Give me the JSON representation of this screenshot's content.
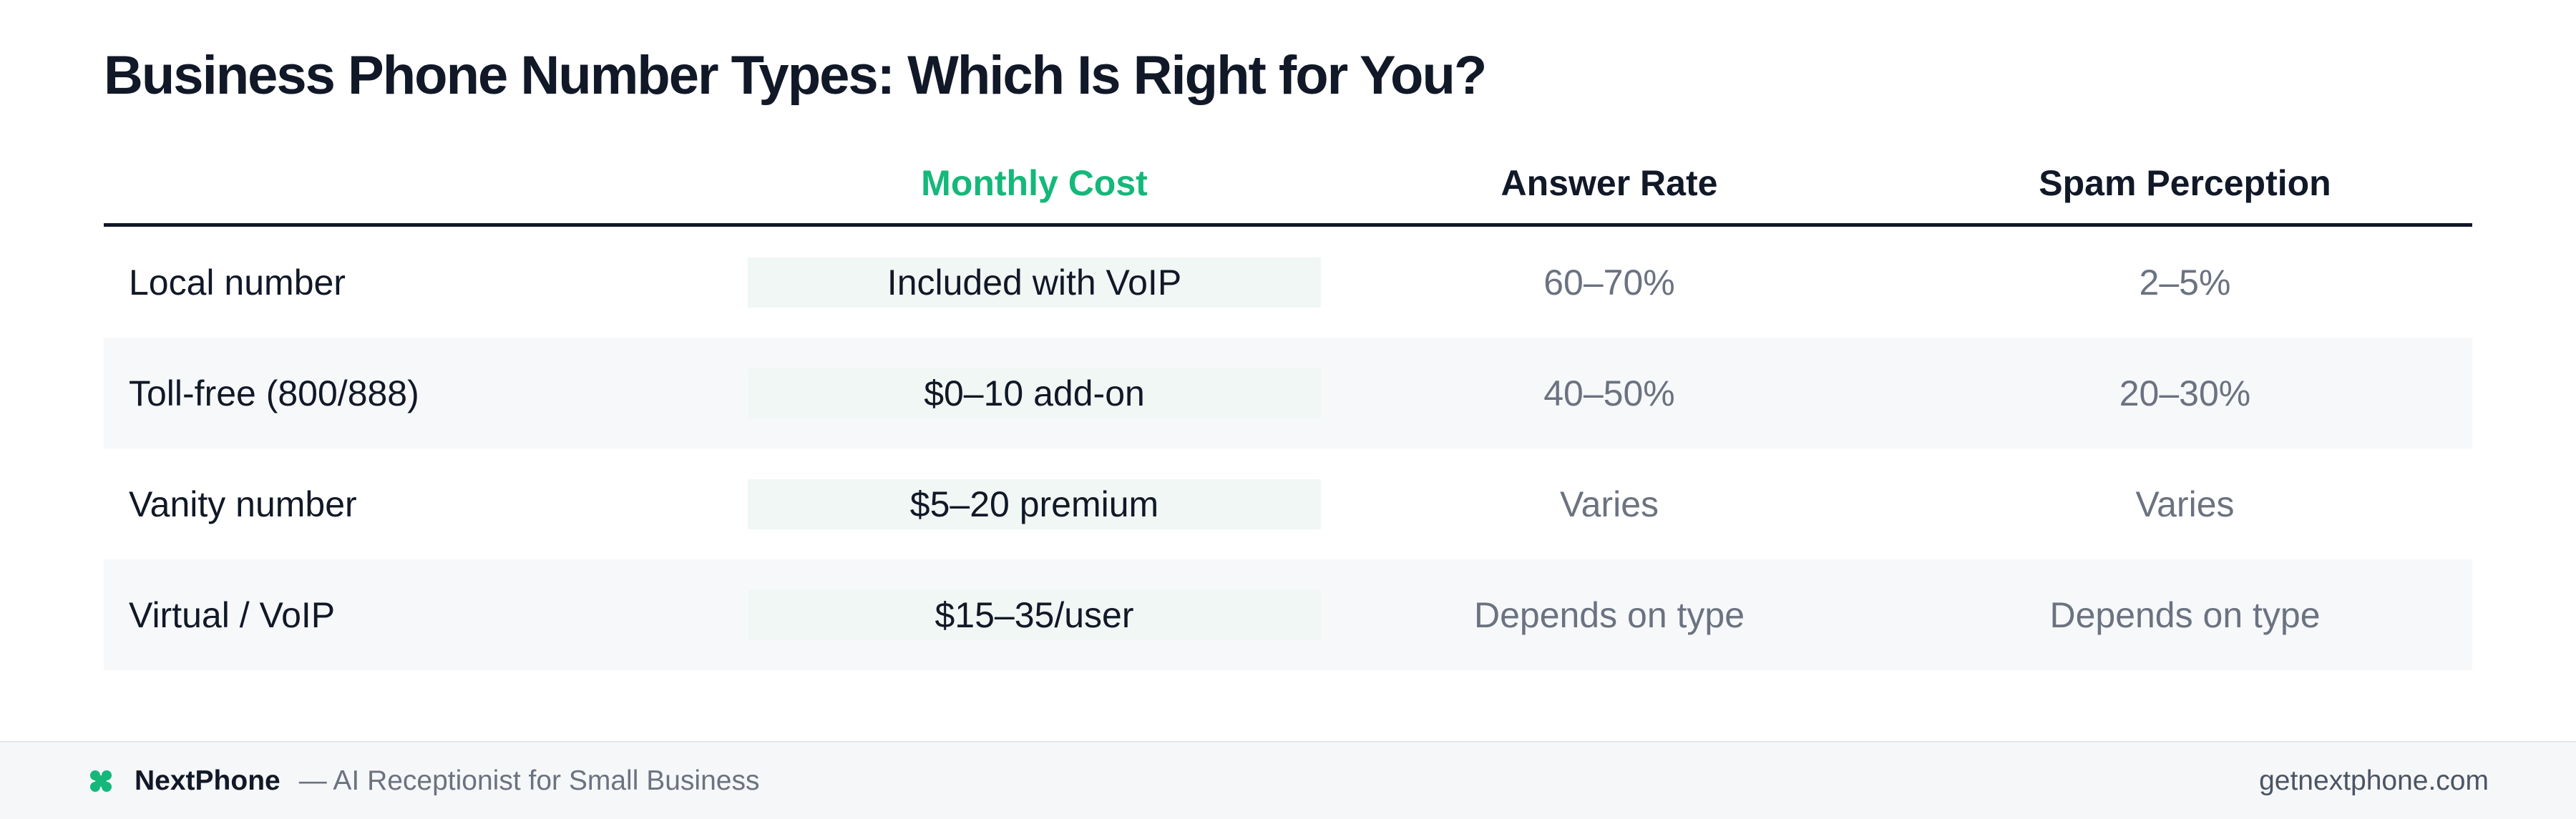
{
  "header": {
    "title": "Business Phone Number Types: Which Is Right for You?"
  },
  "table": {
    "columns": [
      "Monthly Cost",
      "Answer Rate",
      "Spam Perception"
    ],
    "rows": [
      [
        "Local number",
        "Included with VoIP",
        "60–70%",
        "2–5%"
      ],
      [
        "Toll-free (800/888)",
        "$0–10 add-on",
        "40–50%",
        "20–30%"
      ],
      [
        "Vanity number",
        "$5–20 premium",
        "Varies",
        "Varies"
      ],
      [
        "Virtual / VoIP",
        "$15–35/user",
        "Depends on type",
        "Depends on type"
      ]
    ]
  },
  "footer": {
    "brand": "NextPhone",
    "tagline": "— AI Receptionist for Small Business",
    "url": "getnextphone.com"
  }
}
